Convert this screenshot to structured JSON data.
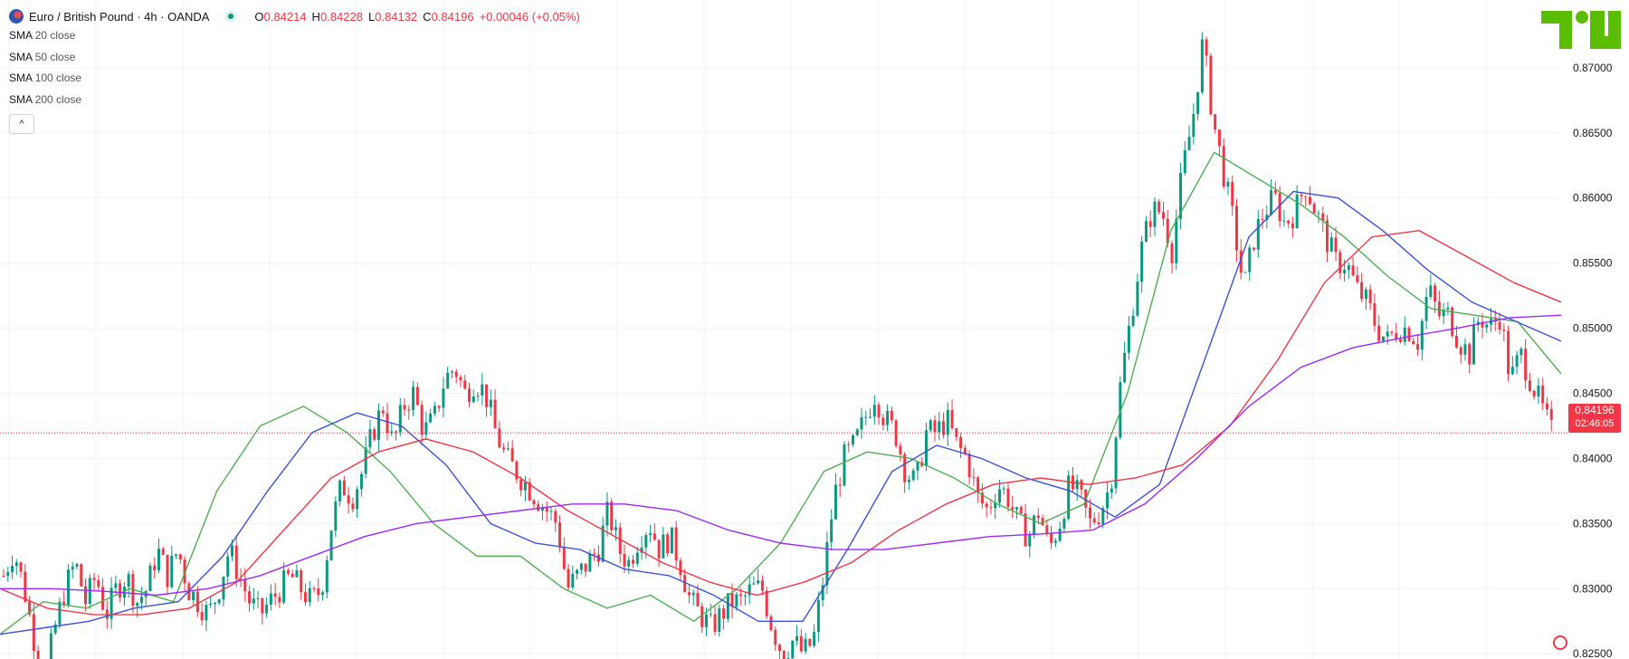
{
  "header": {
    "symbol_title": "Euro / British Pound · 4h · OANDA",
    "ohlc": [
      {
        "label": "O",
        "value": "0.84214"
      },
      {
        "label": "H",
        "value": "0.84228"
      },
      {
        "label": "L",
        "value": "0.84132"
      },
      {
        "label": "C",
        "value": "0.84196"
      }
    ],
    "change": "+0.00046 (+0.05%)"
  },
  "indicators": [
    {
      "name": "SMA",
      "param": "20 close",
      "color": "#4caf50"
    },
    {
      "name": "SMA",
      "param": "50 close",
      "color": "#3f51d8"
    },
    {
      "name": "SMA",
      "param": "100 close",
      "color": "#f23645"
    },
    {
      "name": "SMA",
      "param": "200 close",
      "color": "#9c27ff"
    }
  ],
  "collapse_glyph": "^",
  "price_tag": {
    "price": "0.84196",
    "countdown": "02:46:05"
  },
  "colors": {
    "up": "#089981",
    "down": "#f23645",
    "grid": "#f0f3fa",
    "axis_text": "#131722",
    "logo": "#5bbd00"
  },
  "icons": {
    "logo": "tradingview-logo-icon",
    "symbol": "eur-gbp-flag-icon",
    "watermark": "tv-watermark-icon"
  },
  "chart_data": {
    "type": "candlestick",
    "y_axis_ticks": [
      "0.87000",
      "0.86500",
      "0.86000",
      "0.85500",
      "0.85000",
      "0.84500",
      "0.84000",
      "0.83500",
      "0.83000",
      "0.82500"
    ],
    "ylim": [
      0.8246,
      0.8752
    ],
    "last_price": 0.84196,
    "grid": true,
    "close_path": [
      0.831,
      0.833,
      0.83,
      0.826,
      0.823,
      0.827,
      0.83,
      0.832,
      0.829,
      0.831,
      0.828,
      0.83,
      0.831,
      0.829,
      0.83,
      0.833,
      0.831,
      0.833,
      0.83,
      0.829,
      0.828,
      0.83,
      0.833,
      0.831,
      0.829,
      0.828,
      0.829,
      0.83,
      0.831,
      0.83,
      0.829,
      0.83,
      0.835,
      0.838,
      0.837,
      0.839,
      0.842,
      0.844,
      0.841,
      0.844,
      0.845,
      0.842,
      0.843,
      0.846,
      0.847,
      0.845,
      0.846,
      0.845,
      0.842,
      0.84,
      0.839,
      0.838,
      0.837,
      0.836,
      0.835,
      0.83,
      0.831,
      0.832,
      0.833,
      0.836,
      0.833,
      0.832,
      0.834,
      0.835,
      0.833,
      0.834,
      0.832,
      0.829,
      0.828,
      0.827,
      0.828,
      0.829,
      0.829,
      0.83,
      0.83,
      0.827,
      0.825,
      0.826,
      0.825,
      0.826,
      0.831,
      0.837,
      0.84,
      0.841,
      0.843,
      0.845,
      0.843,
      0.842,
      0.839,
      0.838,
      0.842,
      0.842,
      0.843,
      0.841,
      0.84,
      0.837,
      0.836,
      0.838,
      0.837,
      0.835,
      0.834,
      0.836,
      0.833,
      0.835,
      0.838,
      0.837,
      0.835,
      0.836,
      0.838,
      0.846,
      0.851,
      0.856,
      0.859,
      0.859,
      0.856,
      0.862,
      0.866,
      0.872,
      0.866,
      0.862,
      0.858,
      0.853,
      0.857,
      0.859,
      0.86,
      0.858,
      0.859,
      0.861,
      0.859,
      0.857,
      0.855,
      0.855,
      0.853,
      0.852,
      0.85,
      0.849,
      0.85,
      0.85,
      0.849,
      0.853,
      0.851,
      0.851,
      0.849,
      0.848,
      0.851,
      0.85,
      0.851,
      0.846,
      0.848,
      0.846,
      0.844,
      0.842
    ],
    "series": [
      {
        "name": "SMA 20 close",
        "values": [
          0.8265,
          0.829,
          0.8285,
          0.83,
          0.829,
          0.8375,
          0.8425,
          0.844,
          0.842,
          0.839,
          0.835,
          0.8325,
          0.8325,
          0.83,
          0.8285,
          0.8295,
          0.8275,
          0.83,
          0.8335,
          0.839,
          0.8405,
          0.84,
          0.8385,
          0.8365,
          0.835,
          0.8365,
          0.845,
          0.8575,
          0.8635,
          0.8615,
          0.8595,
          0.857,
          0.854,
          0.8515,
          0.851,
          0.8505,
          0.8465
        ]
      },
      {
        "name": "SMA 50 close",
        "values": [
          0.8265,
          0.827,
          0.8275,
          0.8285,
          0.829,
          0.8325,
          0.8375,
          0.842,
          0.8435,
          0.8425,
          0.8395,
          0.835,
          0.8335,
          0.833,
          0.8315,
          0.831,
          0.8295,
          0.8275,
          0.8275,
          0.833,
          0.839,
          0.841,
          0.84,
          0.8385,
          0.8375,
          0.8355,
          0.838,
          0.8475,
          0.857,
          0.8605,
          0.86,
          0.8575,
          0.8545,
          0.852,
          0.8505,
          0.849
        ]
      },
      {
        "name": "SMA 100 close",
        "values": [
          0.83,
          0.8285,
          0.828,
          0.828,
          0.8285,
          0.8305,
          0.8345,
          0.8385,
          0.8405,
          0.8415,
          0.8405,
          0.8385,
          0.836,
          0.834,
          0.832,
          0.8305,
          0.8295,
          0.8305,
          0.832,
          0.8345,
          0.8365,
          0.838,
          0.8385,
          0.838,
          0.8385,
          0.8395,
          0.8425,
          0.8475,
          0.8535,
          0.857,
          0.8575,
          0.8555,
          0.8535,
          0.852
        ]
      },
      {
        "name": "SMA 200 close",
        "values": [
          0.83,
          0.83,
          0.8298,
          0.8295,
          0.83,
          0.831,
          0.8325,
          0.834,
          0.835,
          0.8355,
          0.836,
          0.8365,
          0.8365,
          0.836,
          0.8345,
          0.8335,
          0.833,
          0.833,
          0.8335,
          0.834,
          0.8342,
          0.8345,
          0.8365,
          0.84,
          0.844,
          0.847,
          0.8485,
          0.8493,
          0.85,
          0.8508,
          0.851
        ]
      }
    ]
  }
}
